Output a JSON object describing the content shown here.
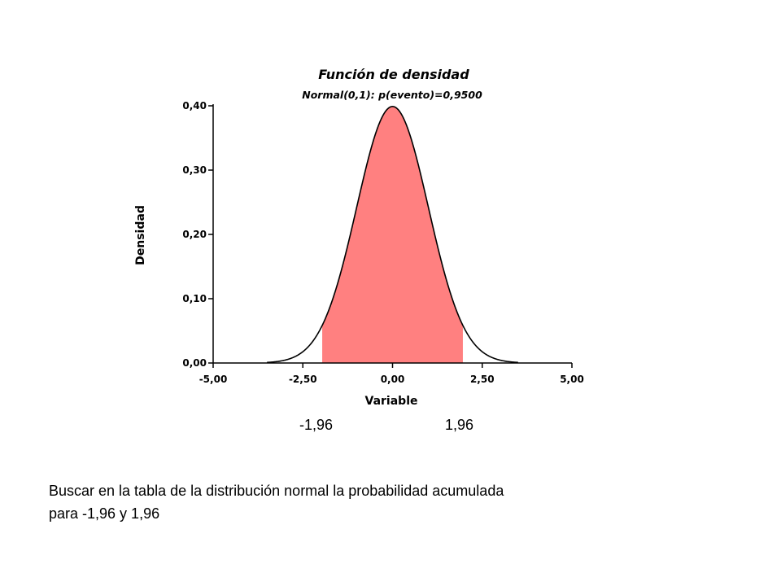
{
  "chart_data": {
    "type": "area",
    "title": "Función de densidad",
    "subtitle": "Normal(0,1): p(evento)=0,9500",
    "xlabel": "Variable",
    "ylabel": "Densidad",
    "xlim": [
      -5.0,
      5.0
    ],
    "ylim": [
      0.0,
      0.4
    ],
    "x_ticks": [
      "-5,00",
      "-2,50",
      "0,00",
      "2,50",
      "5,00"
    ],
    "x_tick_values": [
      -5.0,
      -2.5,
      0.0,
      2.5,
      5.0
    ],
    "y_ticks": [
      "0,00",
      "0,10",
      "0,20",
      "0,30",
      "0,40"
    ],
    "y_tick_values": [
      0.0,
      0.1,
      0.2,
      0.3,
      0.4
    ],
    "distribution": {
      "name": "Normal",
      "mean": 0,
      "sd": 1
    },
    "curve_range": [
      -3.5,
      3.5
    ],
    "shaded_interval": [
      -1.96,
      1.96
    ],
    "probability": 0.95,
    "shade_color": "#ff8080",
    "grid": false,
    "legend": "none"
  },
  "markers": {
    "left": "-1,96",
    "right": "1,96"
  },
  "note": {
    "line1": "Buscar en la tabla de la distribución normal la probabilidad acumulada",
    "line2": "para -1,96 y 1,96"
  }
}
